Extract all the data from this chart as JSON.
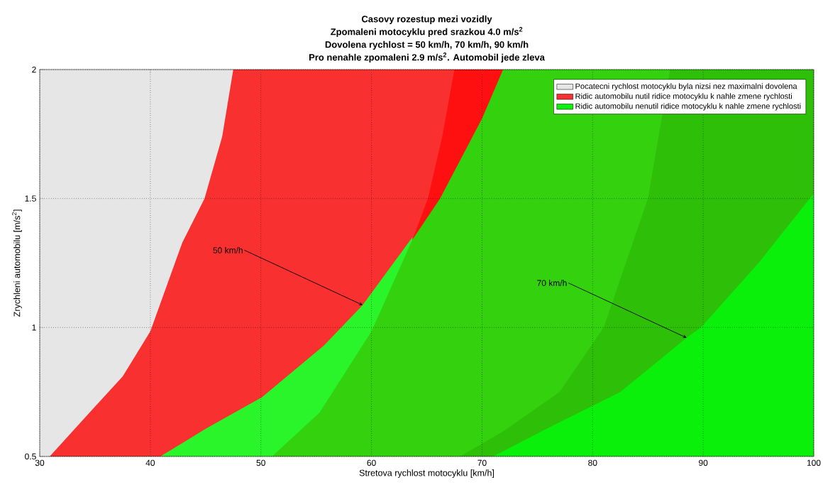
{
  "chart_data": {
    "type": "area",
    "title": "Casovy rozestup mezi vozidly",
    "subtitle": "Zpomaleni motocyklu pred srazkou 4.0 m/s$^{2}$",
    "annotations": [
      "Dovolena rychlost = 50 km/h, 70 km/h, 90 km/h",
      "Pro nenahle zpomaleni 2.9 m/s$^{2}$. Automobil jede zleva",
      {
        "text": "50 km/h",
        "x": 59.2,
        "y": 1.087
      },
      {
        "text": "70 km/h",
        "x": 88.5,
        "y": 0.96
      }
    ],
    "xlabel": "Stretova rychlost motocyklu [km/h]",
    "ylabel": "Zrychleni automobilu [m/s$^{2}$]",
    "xlim": [
      30,
      100
    ],
    "ylim": [
      0.5,
      2
    ],
    "xticks": [
      30,
      40,
      50,
      60,
      70,
      80,
      90,
      100
    ],
    "yticks": [
      0.5,
      1,
      1.5,
      2
    ],
    "grid": true,
    "legend": "top right",
    "series": [
      {
        "name": "Pocatecni rychlost motocyklu byla nizsi nez maximalni dovolena",
        "color": "#e6e6e6",
        "x": [
          30,
          47.5
        ],
        "values": [
          2,
          2
        ]
      },
      {
        "name": "Ridic automobilu nutil ridice motocyklu k nahle zmene rychlosti",
        "color": "#f83030",
        "x": [
          30.9,
          34.5,
          37.5,
          40,
          42.9,
          44.9,
          46.5,
          47.5,
          100
        ],
        "values": [
          0.5,
          0.67,
          0.81,
          0.985,
          1.33,
          1.5,
          1.74,
          2,
          2
        ]
      },
      {
        "color": "#ff1010",
        "x": [
          63.7,
          65.1,
          66.4,
          67.5,
          100
        ],
        "values": [
          1.34,
          1.5,
          1.74,
          2,
          2
        ]
      },
      {
        "color": "#2af52a",
        "x": [
          40.9,
          45,
          50.1,
          55.7,
          59.2,
          63.7
        ],
        "values": [
          0.5,
          0.607,
          0.73,
          0.93,
          1.087,
          1.35
        ]
      },
      {
        "color": "#34d20e",
        "x": [
          51,
          55.3,
          60,
          63.7,
          66.2,
          70,
          71.9,
          100
        ],
        "values": [
          0.5,
          0.67,
          0.985,
          1.34,
          1.5,
          1.81,
          2,
          2
        ]
      },
      {
        "color": "#2ec008",
        "x": [
          68,
          72,
          77,
          81,
          85,
          87,
          100
        ],
        "values": [
          0.5,
          0.6,
          0.75,
          1.0,
          1.5,
          2,
          2
        ]
      },
      {
        "name": "Ridic automobilu nenutil ridice motocyklu k nahle zmene rychlosti",
        "color": "#0af00a",
        "x": [
          71,
          76.4,
          82.5,
          88.5,
          89.8,
          95,
          100
        ],
        "values": [
          0.5,
          0.62,
          0.75,
          0.96,
          1.0,
          1.25,
          1.52
        ]
      }
    ]
  }
}
